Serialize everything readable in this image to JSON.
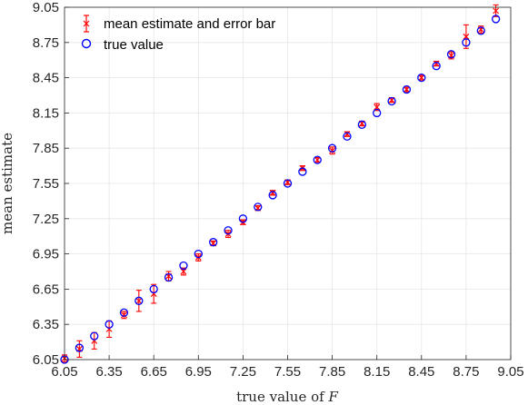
{
  "chart_data": {
    "type": "scatter",
    "title": "",
    "xlabel_prefix": "true value of ",
    "xlabel_var": "F",
    "ylabel": "mean estimate",
    "xlim": [
      6.05,
      9.05
    ],
    "ylim": [
      6.05,
      9.05
    ],
    "xticks": [
      "6.05",
      "6.35",
      "6.65",
      "6.95",
      "7.25",
      "7.55",
      "7.85",
      "8.15",
      "8.45",
      "8.75",
      "9.05"
    ],
    "yticks": [
      "6.05",
      "6.35",
      "6.65",
      "6.95",
      "7.25",
      "7.55",
      "7.85",
      "8.15",
      "8.45",
      "8.75",
      "9.05"
    ],
    "grid": true,
    "legend_position": "top-left",
    "x": [
      6.05,
      6.15,
      6.25,
      6.35,
      6.45,
      6.55,
      6.65,
      6.75,
      6.85,
      6.95,
      7.05,
      7.15,
      7.25,
      7.35,
      7.45,
      7.55,
      7.65,
      7.75,
      7.85,
      7.95,
      8.05,
      8.15,
      8.25,
      8.35,
      8.45,
      8.55,
      8.65,
      8.75,
      8.85,
      8.95
    ],
    "series": [
      {
        "name": "mean estimate and error bar",
        "color": "#ff0000",
        "marker": "x",
        "values": [
          6.06,
          6.14,
          6.21,
          6.31,
          6.43,
          6.55,
          6.61,
          6.76,
          6.8,
          6.92,
          7.04,
          7.12,
          7.22,
          7.34,
          7.47,
          7.56,
          7.68,
          7.75,
          7.83,
          7.97,
          8.06,
          8.2,
          8.26,
          8.35,
          8.45,
          8.57,
          8.64,
          8.8,
          8.86,
          9.02
        ],
        "err": [
          0.03,
          0.07,
          0.07,
          0.07,
          0.03,
          0.09,
          0.08,
          0.04,
          0.03,
          0.03,
          0.02,
          0.03,
          0.02,
          0.02,
          0.02,
          0.02,
          0.02,
          0.02,
          0.03,
          0.02,
          0.02,
          0.03,
          0.02,
          0.02,
          0.02,
          0.02,
          0.03,
          0.1,
          0.03,
          0.05
        ]
      },
      {
        "name": "true value",
        "color": "#0000ff",
        "marker": "o",
        "values": [
          6.05,
          6.15,
          6.25,
          6.35,
          6.45,
          6.55,
          6.65,
          6.75,
          6.85,
          6.95,
          7.05,
          7.15,
          7.25,
          7.35,
          7.45,
          7.55,
          7.65,
          7.75,
          7.85,
          7.95,
          8.05,
          8.15,
          8.25,
          8.35,
          8.45,
          8.55,
          8.65,
          8.75,
          8.85,
          8.95
        ]
      }
    ]
  }
}
